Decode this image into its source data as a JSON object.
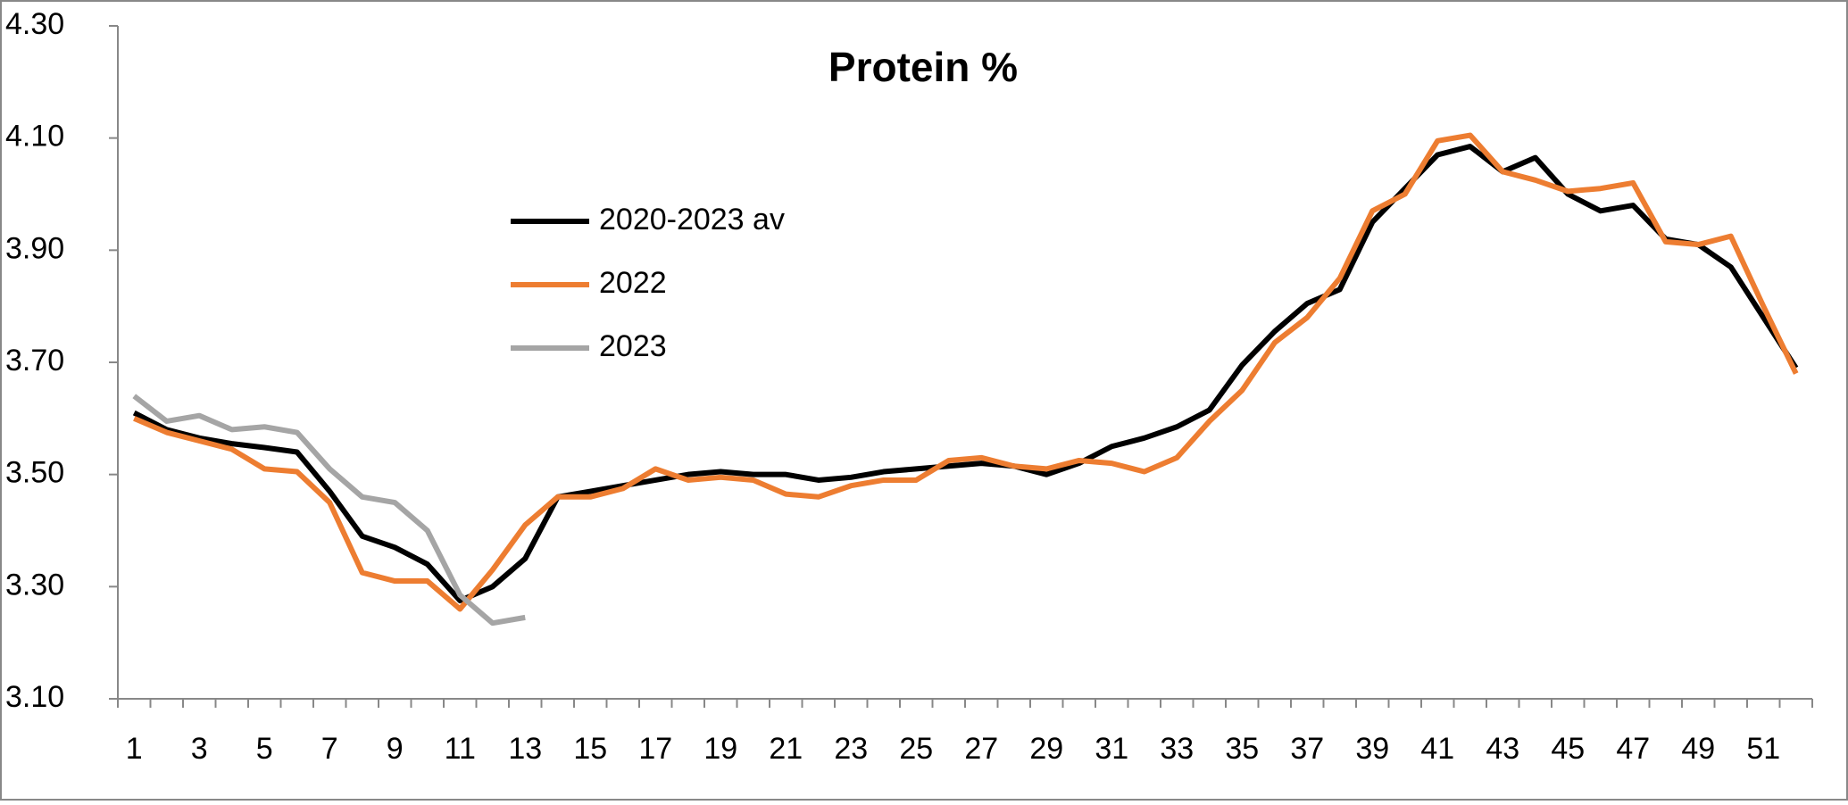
{
  "chart_data": {
    "type": "line",
    "title": "Protein %",
    "categories": [
      "1",
      null,
      "3",
      null,
      "5",
      null,
      "7",
      null,
      "9",
      null,
      "11",
      null,
      "13",
      null,
      "15",
      null,
      "17",
      null,
      "19",
      null,
      "21",
      null,
      "23",
      null,
      "25",
      null,
      "27",
      null,
      "29",
      null,
      "31",
      null,
      "33",
      null,
      "35",
      null,
      "37",
      null,
      "39",
      null,
      "41",
      null,
      "43",
      null,
      "45",
      null,
      "47",
      null,
      "49",
      null,
      "51",
      null
    ],
    "series": [
      {
        "name": "2020-2023 av",
        "color": "#000000",
        "values": [
          3.61,
          3.58,
          3.565,
          3.555,
          3.548,
          3.54,
          3.47,
          3.39,
          3.37,
          3.34,
          3.275,
          3.3,
          3.35,
          3.46,
          3.47,
          3.48,
          3.49,
          3.5,
          3.505,
          3.5,
          3.5,
          3.49,
          3.495,
          3.505,
          3.51,
          3.515,
          3.52,
          3.515,
          3.5,
          3.52,
          3.55,
          3.565,
          3.585,
          3.615,
          3.695,
          3.755,
          3.805,
          3.83,
          3.95,
          4.01,
          4.07,
          4.085,
          4.04,
          4.065,
          4.0,
          3.97,
          3.98,
          3.92,
          3.91,
          3.87,
          3.78,
          3.69
        ]
      },
      {
        "name": "2022",
        "color": "#ed7d31",
        "values": [
          3.6,
          3.575,
          3.56,
          3.545,
          3.51,
          3.505,
          3.45,
          3.325,
          3.31,
          3.31,
          3.26,
          3.33,
          3.41,
          3.46,
          3.46,
          3.475,
          3.51,
          3.49,
          3.495,
          3.49,
          3.465,
          3.46,
          3.48,
          3.49,
          3.49,
          3.525,
          3.53,
          3.515,
          3.51,
          3.525,
          3.52,
          3.505,
          3.53,
          3.595,
          3.65,
          3.735,
          3.78,
          3.85,
          3.97,
          4.0,
          4.095,
          4.105,
          4.04,
          4.025,
          4.005,
          4.01,
          4.02,
          3.915,
          3.91,
          3.925,
          3.8,
          3.68
        ]
      },
      {
        "name": "2023",
        "color": "#a5a5a5",
        "values": [
          3.64,
          3.595,
          3.605,
          3.58,
          3.585,
          3.575,
          3.51,
          3.46,
          3.45,
          3.4,
          3.285,
          3.235,
          3.245,
          null,
          null,
          null,
          null,
          null,
          null,
          null,
          null,
          null,
          null,
          null,
          null,
          null,
          null,
          null,
          null,
          null,
          null,
          null,
          null,
          null,
          null,
          null,
          null,
          null,
          null,
          null,
          null,
          null,
          null,
          null,
          null,
          null,
          null,
          null,
          null,
          null,
          null,
          null
        ]
      }
    ],
    "ylim": [
      3.1,
      4.3
    ],
    "yticks": [
      {
        "value": 3.1,
        "label": "3.10"
      },
      {
        "value": 3.3,
        "label": "3.30"
      },
      {
        "value": 3.5,
        "label": "3.50"
      },
      {
        "value": 3.7,
        "label": "3.70"
      },
      {
        "value": 3.9,
        "label": "3.90"
      },
      {
        "value": 4.1,
        "label": "4.10"
      },
      {
        "value": 4.3,
        "label": "4.30"
      }
    ],
    "grid": false,
    "legend": "upper left"
  }
}
